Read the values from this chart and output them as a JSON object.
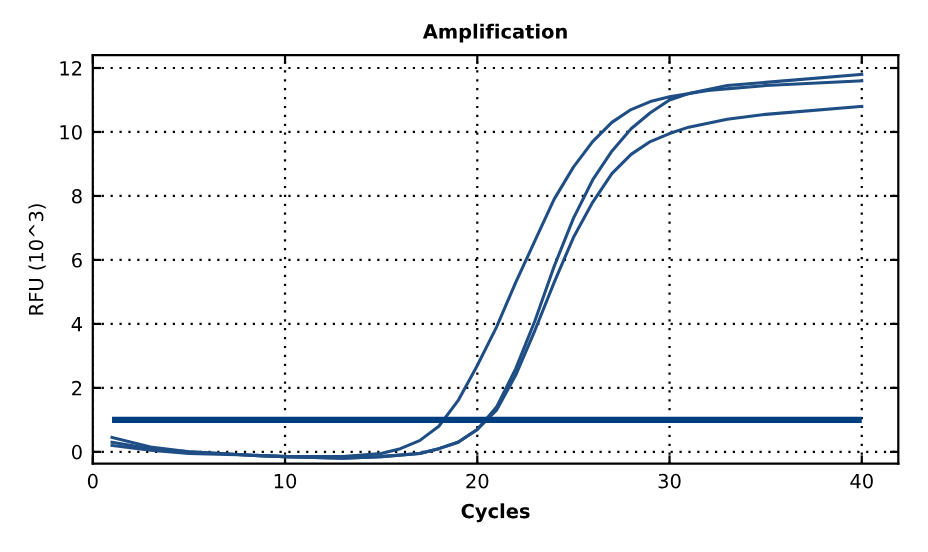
{
  "chart_data": {
    "type": "line",
    "title": "Amplification",
    "xlabel": "Cycles",
    "ylabel": "RFU (10^3)",
    "xlim": [
      0,
      41.9
    ],
    "ylim": [
      -0.37,
      12.4
    ],
    "xticks": [
      0,
      10,
      20,
      30,
      40
    ],
    "yticks": [
      0,
      2,
      4,
      6,
      8,
      10,
      12
    ],
    "grid": true,
    "line_style": "solid",
    "marker": "none",
    "series": [
      {
        "color": "#1f4e85",
        "x": [
          1,
          3,
          5,
          8,
          10,
          13,
          15,
          16,
          17,
          18,
          19,
          20,
          21,
          22,
          23,
          24,
          25,
          26,
          27,
          28,
          29,
          30,
          32,
          35,
          40
        ],
        "values": [
          0.3,
          0.1,
          0.0,
          -0.1,
          -0.15,
          -0.15,
          -0.05,
          0.1,
          0.35,
          0.8,
          1.6,
          2.7,
          3.9,
          5.3,
          6.6,
          7.9,
          8.9,
          9.7,
          10.3,
          10.7,
          10.95,
          11.1,
          11.3,
          11.45,
          11.6
        ]
      },
      {
        "color": "#1f4e85",
        "x": [
          1,
          3,
          5,
          8,
          10,
          13,
          15,
          17,
          18,
          19,
          20,
          21,
          22,
          23,
          24,
          25,
          26,
          27,
          28,
          29,
          30,
          31,
          33,
          35,
          40
        ],
        "values": [
          0.45,
          0.15,
          0.0,
          -0.1,
          -0.15,
          -0.2,
          -0.15,
          -0.05,
          0.1,
          0.3,
          0.7,
          1.4,
          2.6,
          4.1,
          5.8,
          7.3,
          8.5,
          9.4,
          10.1,
          10.6,
          11.0,
          11.2,
          11.45,
          11.55,
          11.8
        ]
      },
      {
        "color": "#1f4e85",
        "x": [
          1,
          3,
          5,
          8,
          10,
          13,
          15,
          17,
          18,
          19,
          20,
          21,
          22,
          23,
          24,
          25,
          26,
          27,
          28,
          29,
          30,
          31,
          33,
          35,
          40
        ],
        "values": [
          0.2,
          0.05,
          -0.05,
          -0.1,
          -0.15,
          -0.2,
          -0.15,
          -0.05,
          0.1,
          0.3,
          0.7,
          1.3,
          2.4,
          3.8,
          5.3,
          6.7,
          7.8,
          8.7,
          9.3,
          9.7,
          9.95,
          10.15,
          10.4,
          10.55,
          10.8
        ]
      }
    ],
    "ref_lines": [
      {
        "axis": "y",
        "value": 1,
        "color": "#003f7f"
      }
    ]
  }
}
